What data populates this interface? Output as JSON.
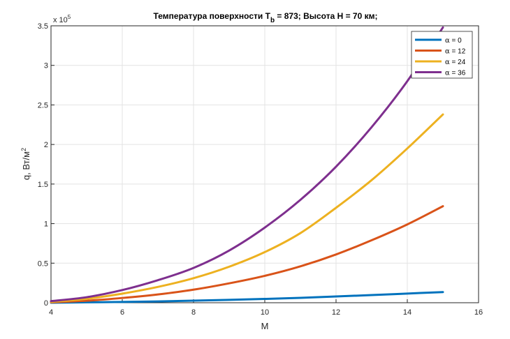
{
  "chart_data": {
    "type": "line",
    "title_main": "Температура поверхности T",
    "title_sub": "b",
    "title_rest": " = 873; Высота H = 70 км;",
    "xlabel": "M",
    "ylabel_main": "q, Вт/м",
    "ylabel_sup": "2",
    "exponent_base": "x 10",
    "exponent_power": "5",
    "xlim": [
      4,
      16
    ],
    "ylim": [
      0,
      3.5
    ],
    "xticks": [
      4,
      6,
      8,
      10,
      12,
      14,
      16
    ],
    "xtick_labels": [
      "4",
      "6",
      "8",
      "10",
      "12",
      "14",
      "16"
    ],
    "yticks": [
      0,
      0.5,
      1,
      1.5,
      2,
      2.5,
      3,
      3.5
    ],
    "ytick_labels": [
      "0",
      "0.5",
      "1",
      "1.5",
      "2",
      "2.5",
      "3",
      "3.5"
    ],
    "grid": true,
    "legend_position": "top-right",
    "legend_symbol": "α",
    "x": [
      4,
      5,
      6,
      7,
      8,
      9,
      10,
      11,
      12,
      13,
      14,
      15
    ],
    "series": [
      {
        "name": " = 0",
        "color": "#0072BD",
        "values": [
          0.0,
          0.005,
          0.01,
          0.017,
          0.026,
          0.036,
          0.048,
          0.062,
          0.079,
          0.097,
          0.116,
          0.135
        ]
      },
      {
        "name": " = 12",
        "color": "#D95319",
        "values": [
          0.005,
          0.025,
          0.06,
          0.105,
          0.165,
          0.245,
          0.34,
          0.46,
          0.61,
          0.79,
          0.99,
          1.22
        ]
      },
      {
        "name": " = 24",
        "color": "#EDB120",
        "values": [
          0.01,
          0.05,
          0.115,
          0.2,
          0.31,
          0.455,
          0.64,
          0.88,
          1.2,
          1.55,
          1.95,
          2.38
        ]
      },
      {
        "name": " = 36",
        "color": "#7E2F8E",
        "values": [
          0.02,
          0.07,
          0.16,
          0.285,
          0.44,
          0.66,
          0.95,
          1.3,
          1.72,
          2.22,
          2.8,
          3.48
        ]
      }
    ]
  }
}
